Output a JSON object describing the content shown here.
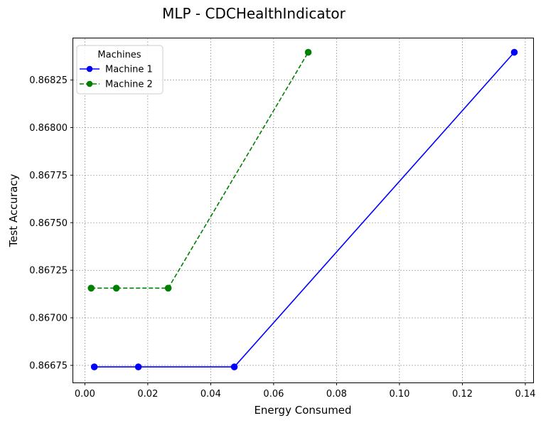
{
  "chart_data": {
    "type": "line",
    "title": "MLP - CDCHealthIndicator",
    "xlabel": "Energy Consumed",
    "ylabel": "Test Accuracy",
    "xlim": [
      -0.0037,
      0.1425
    ],
    "ylim": [
      0.86666,
      0.868469
    ],
    "xticks": [
      0.0,
      0.02,
      0.04,
      0.06,
      0.08,
      0.1,
      0.12,
      0.14
    ],
    "xtick_labels": [
      "0.00",
      "0.02",
      "0.04",
      "0.06",
      "0.08",
      "0.10",
      "0.12",
      "0.14"
    ],
    "yticks": [
      0.86675,
      0.867,
      0.86725,
      0.8675,
      0.86775,
      0.868,
      0.86825
    ],
    "ytick_labels": [
      "0.86675",
      "0.86700",
      "0.86725",
      "0.86750",
      "0.86775",
      "0.86800",
      "0.86825"
    ],
    "grid": true,
    "legend": {
      "title": "Machines",
      "placement": "upper-left"
    },
    "series": [
      {
        "name": "Machine 1",
        "color": "#0000ff",
        "linestyle": "solid",
        "marker": "circle",
        "points": [
          {
            "x": 0.003,
            "y": 0.866742
          },
          {
            "x": 0.017,
            "y": 0.866742
          },
          {
            "x": 0.0475,
            "y": 0.866742
          },
          {
            "x": 0.1365,
            "y": 0.868396
          }
        ]
      },
      {
        "name": "Machine 2",
        "color": "#008000",
        "linestyle": "dashed",
        "marker": "circle",
        "points": [
          {
            "x": 0.002,
            "y": 0.867156
          },
          {
            "x": 0.01,
            "y": 0.867156
          },
          {
            "x": 0.0265,
            "y": 0.867156
          },
          {
            "x": 0.071,
            "y": 0.868396
          }
        ]
      }
    ]
  }
}
